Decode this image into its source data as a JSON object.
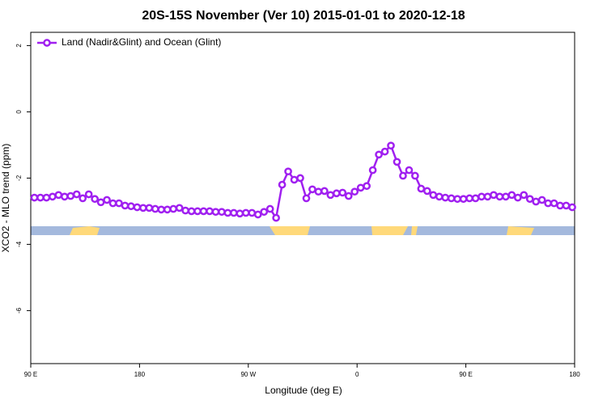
{
  "chart_data": {
    "type": "line",
    "title": "20S-15S November (Ver 10)   2015-01-01 to 2020-12-18",
    "x_label": "Longitude (deg E)",
    "y_label": "XCO2 - MLO trend (ppm)",
    "xlim": [
      90,
      540
    ],
    "xticks": [
      {
        "value": 90,
        "label": "90 E"
      },
      {
        "value": 180,
        "label": "180"
      },
      {
        "value": 270,
        "label": "90 W"
      },
      {
        "value": 360,
        "label": "0"
      },
      {
        "value": 450,
        "label": "90 E"
      },
      {
        "value": 540,
        "label": "180"
      }
    ],
    "ylim": [
      -7.6,
      2.4
    ],
    "yticks": [
      2,
      0,
      -2,
      -4,
      -6
    ],
    "legend": "top-left",
    "x": [
      93,
      98,
      103,
      108,
      113,
      118,
      123,
      128,
      133,
      138,
      143,
      148,
      153,
      158,
      163,
      168,
      173,
      178,
      183,
      188,
      193,
      198,
      203,
      208,
      213,
      218,
      223,
      228,
      233,
      238,
      243,
      248,
      253,
      258,
      263,
      268,
      273,
      278,
      283,
      288,
      293,
      298,
      303,
      308,
      313,
      318,
      323,
      328,
      333,
      338,
      343,
      348,
      353,
      358,
      363,
      368,
      373,
      378,
      383,
      388,
      393,
      398,
      403,
      408,
      413,
      418,
      423,
      428,
      433,
      438,
      443,
      448,
      453,
      458,
      463,
      468,
      473,
      478,
      483,
      488,
      493,
      498,
      503,
      508,
      513,
      518,
      523,
      528,
      533,
      538
    ],
    "series": [
      {
        "name": "Land (Nadir&Glint) and Ocean (Glint)",
        "color": "#a020f0",
        "values": [
          -2.59,
          -2.59,
          -2.59,
          -2.56,
          -2.51,
          -2.56,
          -2.54,
          -2.49,
          -2.61,
          -2.49,
          -2.63,
          -2.73,
          -2.66,
          -2.76,
          -2.76,
          -2.83,
          -2.85,
          -2.88,
          -2.9,
          -2.9,
          -2.93,
          -2.95,
          -2.95,
          -2.93,
          -2.9,
          -2.98,
          -3.0,
          -3.0,
          -3.0,
          -3.0,
          -3.02,
          -3.02,
          -3.05,
          -3.05,
          -3.07,
          -3.05,
          -3.05,
          -3.1,
          -3.02,
          -2.93,
          -3.2,
          -2.2,
          -1.8,
          -2.05,
          -2.0,
          -2.61,
          -2.34,
          -2.41,
          -2.39,
          -2.51,
          -2.46,
          -2.44,
          -2.54,
          -2.41,
          -2.29,
          -2.24,
          -1.76,
          -1.29,
          -1.2,
          -1.02,
          -1.51,
          -1.93,
          -1.76,
          -1.93,
          -2.32,
          -2.39,
          -2.51,
          -2.56,
          -2.59,
          -2.61,
          -2.63,
          -2.63,
          -2.61,
          -2.61,
          -2.56,
          -2.56,
          -2.51,
          -2.56,
          -2.56,
          -2.51,
          -2.59,
          -2.51,
          -2.63,
          -2.71,
          -2.66,
          -2.76,
          -2.76,
          -2.83,
          -2.83,
          -2.88
        ]
      }
    ]
  }
}
